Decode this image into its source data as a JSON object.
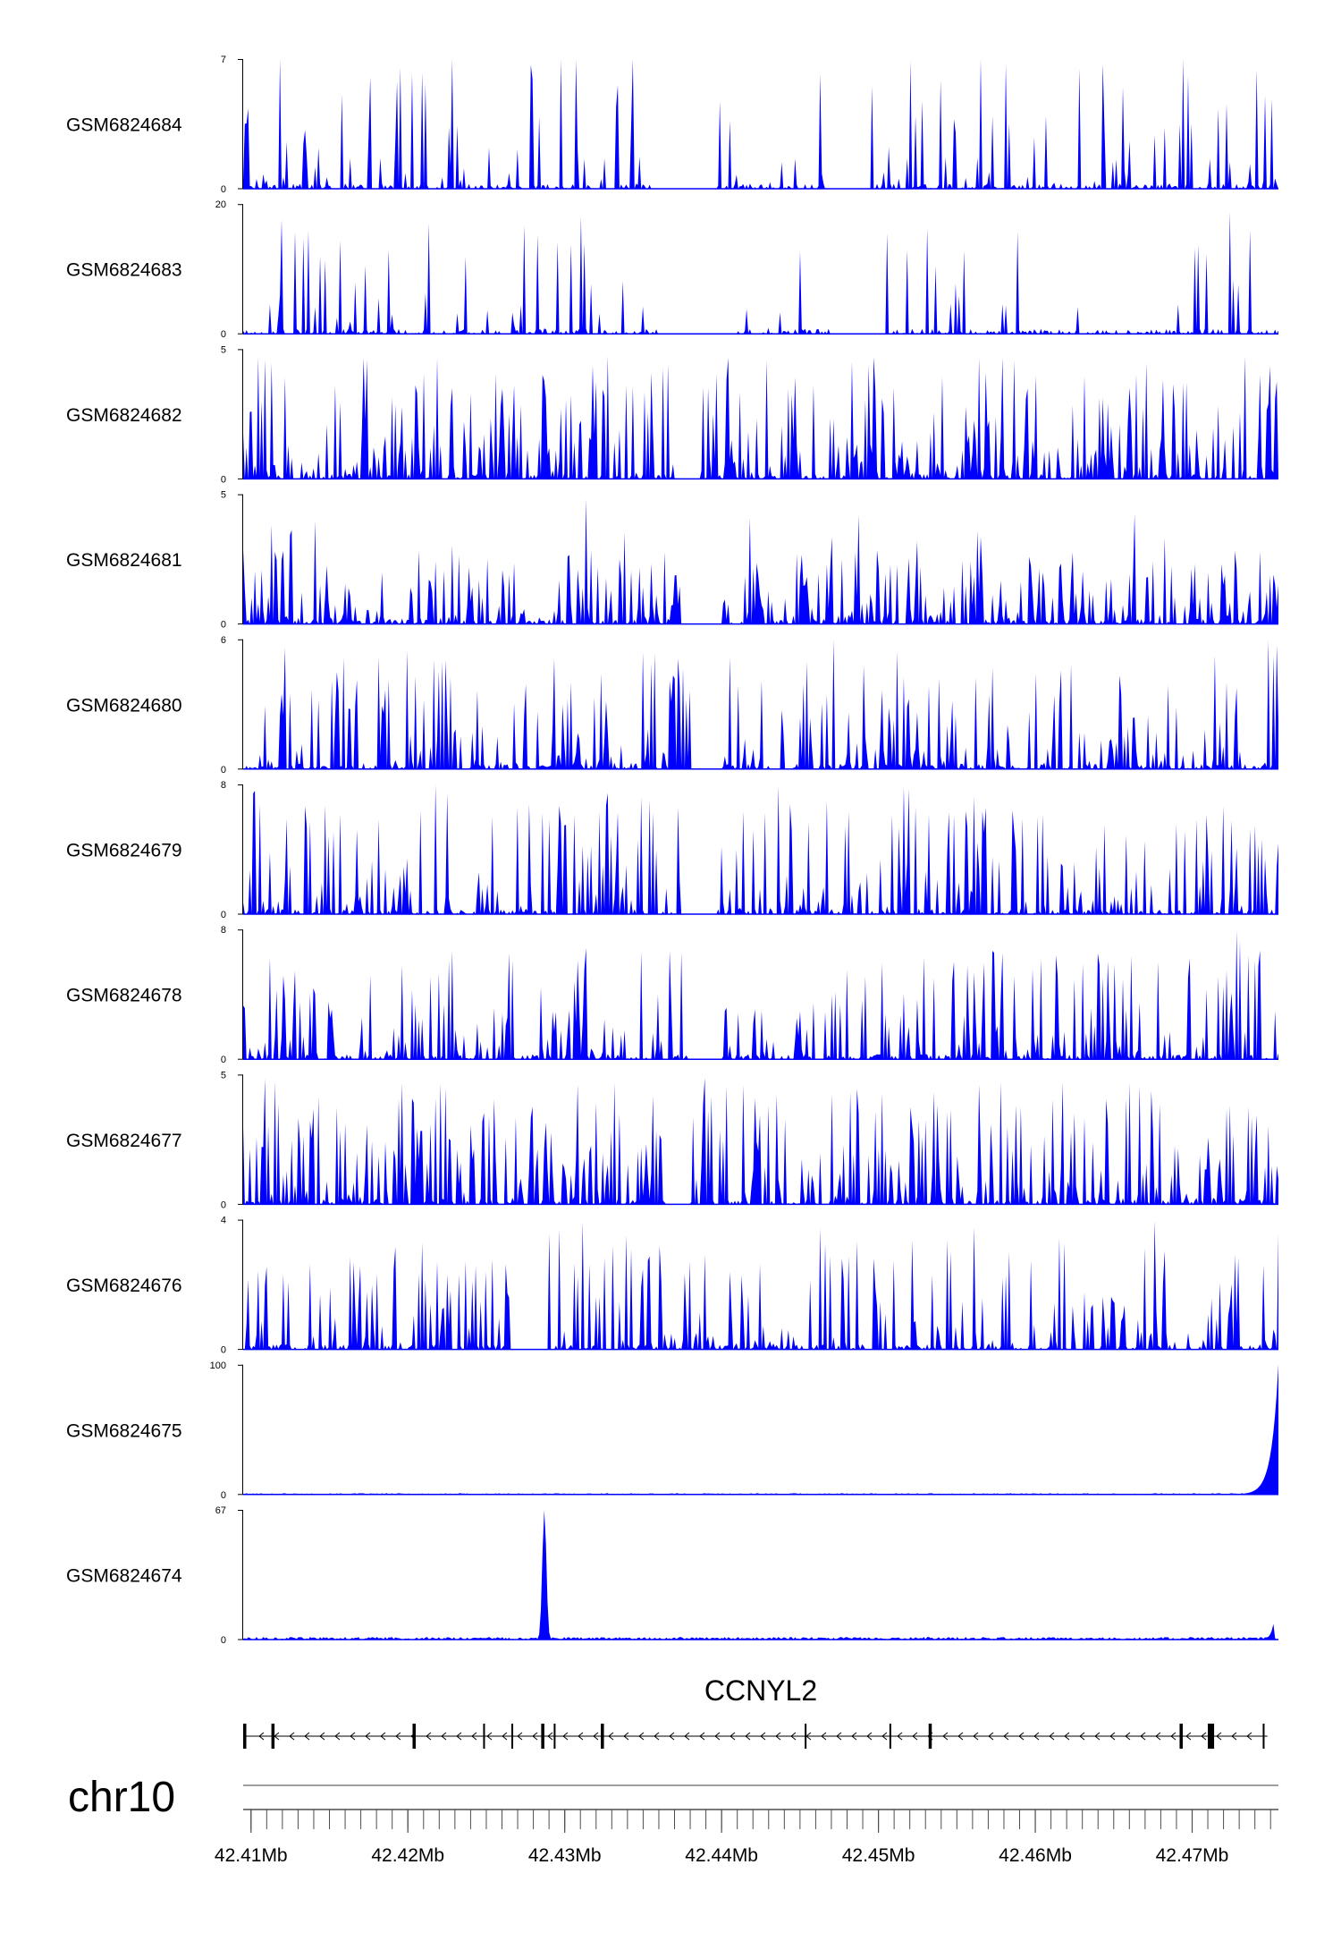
{
  "chart_data": {
    "type": "area",
    "chromosome": "chr10",
    "x_unit": "Mb",
    "xlim": [
      42.4095,
      42.4755
    ],
    "x_ticks": [
      42.41,
      42.42,
      42.43,
      42.44,
      42.45,
      42.46,
      42.47
    ],
    "x_tick_labels": [
      "42.41Mb",
      "42.42Mb",
      "42.43Mb",
      "42.44Mb",
      "42.45Mb",
      "42.46Mb",
      "42.47Mb"
    ],
    "minor_tick_step": 0.001,
    "fill_color": "#0000ff",
    "series": [
      {
        "name": "GSM6824684",
        "ymin": 0,
        "ymax": 7,
        "ymax_label": "7",
        "ymin_label": "0",
        "seed": 11,
        "style": "sparse",
        "scale": 0.55,
        "gaps": [
          [
            42.4355,
            42.4395
          ],
          [
            42.4465,
            42.4495
          ]
        ]
      },
      {
        "name": "GSM6824683",
        "ymin": 0,
        "ymax": 20,
        "ymax_label": "20",
        "ymin_label": "0",
        "seed": 23,
        "style": "very_sparse",
        "scale": 0.45,
        "gaps": [
          [
            42.436,
            42.441
          ],
          [
            42.447,
            42.4505
          ]
        ]
      },
      {
        "name": "GSM6824682",
        "ymin": 0,
        "ymax": 5,
        "ymax_label": "5",
        "ymin_label": "0",
        "seed": 37,
        "style": "dense",
        "scale": 0.5,
        "gaps": [
          [
            42.437,
            42.4385
          ]
        ]
      },
      {
        "name": "GSM6824681",
        "ymin": 0,
        "ymax": 5,
        "ymax_label": "5",
        "ymin_label": "0",
        "seed": 41,
        "style": "dense",
        "scale": 0.3,
        "gaps": [
          [
            42.4375,
            42.44
          ]
        ]
      },
      {
        "name": "GSM6824680",
        "ymin": 0,
        "ymax": 6,
        "ymax_label": "6",
        "ymin_label": "0",
        "seed": 53,
        "style": "medium",
        "scale": 0.5,
        "gaps": [
          [
            42.438,
            42.44
          ]
        ]
      },
      {
        "name": "GSM6824679",
        "ymin": 0,
        "ymax": 8,
        "ymax_label": "8",
        "ymin_label": "0",
        "seed": 67,
        "style": "medium",
        "scale": 0.45,
        "gaps": [
          [
            42.4375,
            42.4395
          ]
        ]
      },
      {
        "name": "GSM6824678",
        "ymin": 0,
        "ymax": 8,
        "ymax_label": "8",
        "ymin_label": "0",
        "seed": 71,
        "style": "medium",
        "scale": 0.45,
        "gaps": [
          [
            42.438,
            42.44
          ]
        ]
      },
      {
        "name": "GSM6824677",
        "ymin": 0,
        "ymax": 5,
        "ymax_label": "5",
        "ymin_label": "0",
        "seed": 83,
        "style": "dense",
        "scale": 0.5,
        "gaps": [
          [
            42.4365,
            42.438
          ]
        ]
      },
      {
        "name": "GSM6824676",
        "ymin": 0,
        "ymax": 4,
        "ymax_label": "4",
        "ymin_label": "0",
        "seed": 97,
        "style": "medium",
        "scale": 0.45,
        "gaps": [
          [
            42.4265,
            42.429
          ]
        ]
      },
      {
        "name": "GSM6824675",
        "ymin": 0,
        "ymax": 100,
        "ymax_label": "100",
        "ymin_label": "0",
        "seed": 101,
        "style": "flat",
        "scale": 0.01,
        "peaks": [
          {
            "x": 42.4755,
            "height": 100,
            "width": 0.0007,
            "shape": "edge"
          }
        ]
      },
      {
        "name": "GSM6824674",
        "ymin": 0,
        "ymax": 67,
        "ymax_label": "67",
        "ymin_label": "0",
        "seed": 113,
        "style": "flat",
        "scale": 0.02,
        "peaks": [
          {
            "x": 42.4287,
            "height": 67,
            "width": 0.0002,
            "shape": "spike"
          },
          {
            "x": 42.4752,
            "height": 9,
            "width": 0.0003,
            "shape": "edge"
          }
        ]
      }
    ],
    "gene": {
      "name": "CCNYL2",
      "strand": "-",
      "start": 42.4095,
      "end": 42.4748,
      "exons": [
        {
          "start": 42.4095,
          "end": 42.4097
        },
        {
          "start": 42.4113,
          "end": 42.4115
        },
        {
          "start": 42.4203,
          "end": 42.4205
        },
        {
          "start": 42.4248,
          "end": 42.4249
        },
        {
          "start": 42.4266,
          "end": 42.4267
        },
        {
          "start": 42.4285,
          "end": 42.4287
        },
        {
          "start": 42.4293,
          "end": 42.4294
        },
        {
          "start": 42.4323,
          "end": 42.4325
        },
        {
          "start": 42.4453,
          "end": 42.4454
        },
        {
          "start": 42.4507,
          "end": 42.4508
        },
        {
          "start": 42.4532,
          "end": 42.4534
        },
        {
          "start": 42.4692,
          "end": 42.4694
        },
        {
          "start": 42.471,
          "end": 42.4714
        },
        {
          "start": 42.4745,
          "end": 42.4746
        }
      ]
    }
  }
}
